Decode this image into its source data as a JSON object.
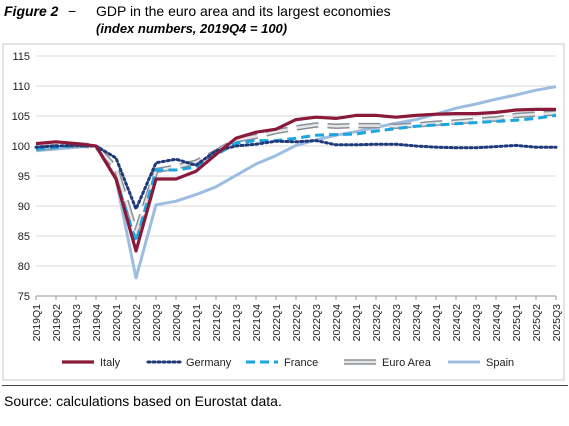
{
  "figure": {
    "label": "Figure 2",
    "dash": "−",
    "title": "GDP in the euro area and its largest economies",
    "subtitle": "(index numbers, 2019Q4 = 100)"
  },
  "source": "Source: calculations based on Eurostat data.",
  "chart_data": {
    "type": "line",
    "xlabel": "",
    "ylabel": "",
    "ylim": [
      75,
      115
    ],
    "yticks": [
      75,
      80,
      85,
      90,
      95,
      100,
      105,
      110,
      115
    ],
    "grid": "horizontal",
    "legend_position": "bottom",
    "categories": [
      "2019Q1",
      "2019Q2",
      "2019Q3",
      "2019Q4",
      "2020Q1",
      "2020Q2",
      "2020Q3",
      "2020Q4",
      "2021Q1",
      "2021Q2",
      "2021Q3",
      "2021Q4",
      "2022Q1",
      "2022Q2",
      "2022Q3",
      "2022Q4",
      "2023Q1",
      "2023Q2",
      "2023Q3",
      "2023Q4",
      "2024Q1",
      "2024Q2",
      "2024Q3",
      "2024Q4",
      "2025Q1",
      "2025Q2",
      "2025Q3"
    ],
    "series": [
      {
        "name": "Italy",
        "color": "#8b1a3a",
        "style": "solid",
        "values": [
          100.4,
          100.7,
          100.4,
          100.0,
          94.5,
          82.5,
          94.5,
          94.5,
          95.8,
          98.6,
          101.3,
          102.3,
          102.8,
          104.4,
          104.8,
          104.6,
          105.1,
          105.1,
          104.8,
          105.1,
          105.3,
          105.4,
          105.4,
          105.6,
          106.0,
          106.1,
          106.1
        ]
      },
      {
        "name": "Germany",
        "color": "#1f3a7a",
        "style": "dotted",
        "values": [
          99.8,
          100.0,
          100.1,
          100.0,
          98.0,
          89.5,
          97.2,
          97.8,
          96.8,
          99.2,
          100.0,
          100.3,
          100.8,
          100.7,
          100.9,
          100.2,
          100.2,
          100.3,
          100.3,
          100.0,
          99.8,
          99.7,
          99.7,
          99.9,
          100.1,
          99.8,
          99.8
        ]
      },
      {
        "name": "France",
        "color": "#1aa6df",
        "style": "dashed",
        "values": [
          99.5,
          99.8,
          100.1,
          100.0,
          94.5,
          84.0,
          96.0,
          96.0,
          96.5,
          98.5,
          100.5,
          100.9,
          100.9,
          101.3,
          101.8,
          101.9,
          102.0,
          102.5,
          102.9,
          103.3,
          103.5,
          103.7,
          103.9,
          104.1,
          104.3,
          104.6,
          105.1
        ]
      },
      {
        "name": "Euro Area",
        "color": "#9aa0a6",
        "style": "double",
        "values": [
          99.6,
          99.9,
          100.2,
          100.0,
          96.3,
          85.5,
          95.9,
          96.5,
          97.3,
          99.0,
          101.0,
          101.6,
          102.4,
          103.0,
          103.5,
          103.3,
          103.4,
          103.4,
          103.3,
          103.5,
          103.8,
          104.0,
          104.3,
          104.5,
          105.1,
          105.3,
          105.5
        ]
      },
      {
        "name": "Spain",
        "color": "#9cbde0",
        "style": "solid",
        "values": [
          99.2,
          99.5,
          99.8,
          100.0,
          94.5,
          78.0,
          90.2,
          90.8,
          91.9,
          93.2,
          95.1,
          97.0,
          98.4,
          100.1,
          101.0,
          101.8,
          102.4,
          103.1,
          103.8,
          104.4,
          105.3,
          106.3,
          107.0,
          107.8,
          108.5,
          109.3,
          109.9
        ]
      }
    ]
  }
}
